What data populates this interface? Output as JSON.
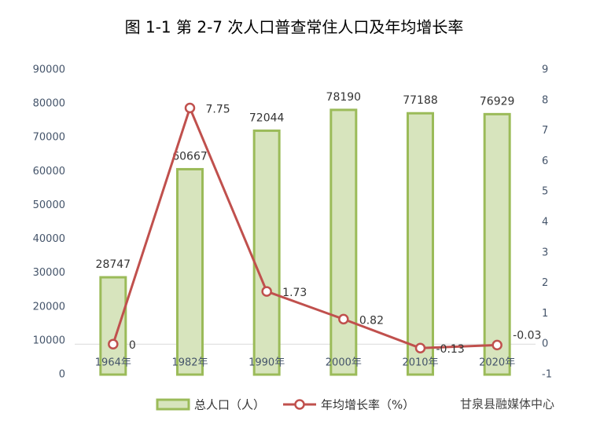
{
  "chart_data": {
    "type": "bar-line",
    "title": "图 1-1 第 2-7 次人口普查常住人口及年均增长率",
    "categories": [
      "1964年",
      "1982年",
      "1990年",
      "2000年",
      "2010年",
      "2020年"
    ],
    "series": [
      {
        "name": "总人口（人）",
        "type": "bar",
        "color": "#d7e4bd",
        "edge_color": "#9bbb59",
        "values": [
          28747,
          60667,
          72044,
          78190,
          77188,
          76929
        ]
      },
      {
        "name": "年均增长率（%）",
        "type": "line",
        "axis": "y2",
        "color": "#c0504d",
        "values": [
          0,
          7.75,
          1.73,
          0.82,
          -0.13,
          -0.03
        ]
      }
    ],
    "ylim": [
      0,
      90000
    ],
    "yticks": [
      0,
      10000,
      20000,
      30000,
      40000,
      50000,
      60000,
      70000,
      80000,
      90000
    ],
    "y2lim": [
      -1,
      9
    ],
    "y2ticks": [
      -1,
      0,
      1,
      2,
      3,
      4,
      5,
      6,
      7,
      8,
      9
    ],
    "grid": false,
    "legend": "bottom",
    "watermark": "甘泉县融媒体中心"
  }
}
